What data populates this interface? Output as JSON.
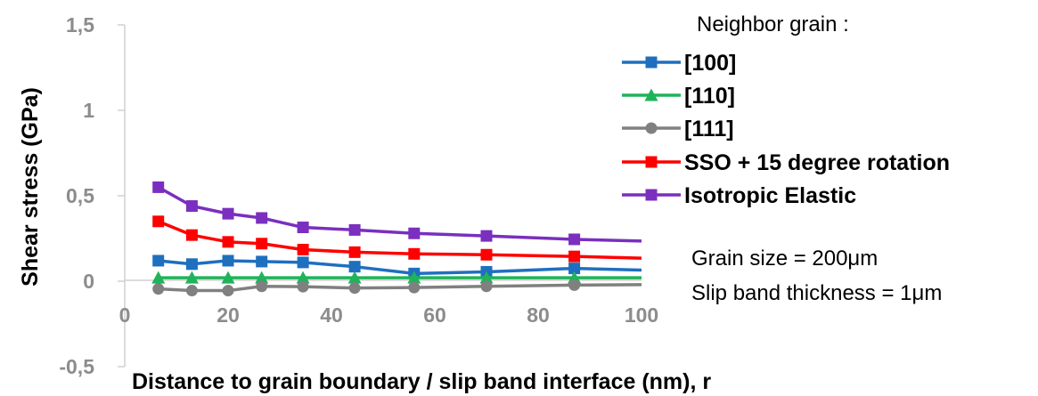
{
  "chart_data": {
    "type": "line",
    "title": "",
    "xlabel": "Distance to grain boundary / slip band interface (nm), r",
    "ylabel": "Shear stress (GPa)",
    "xlim": [
      0,
      100
    ],
    "ylim": [
      -0.5,
      1.5
    ],
    "x_ticks": [
      "0",
      "20",
      "40",
      "60",
      "80",
      "100"
    ],
    "y_ticks": [
      "-0,5",
      "0",
      "0,5",
      "1",
      "1,5"
    ],
    "grid": false,
    "legend_title": "Neighbor grain :",
    "legend_position": "top-right",
    "series": [
      {
        "name": "[100]",
        "color": "#1f6fbf",
        "marker": "square",
        "x": [
          6.5,
          13,
          20,
          26.5,
          34.5,
          44.5,
          56,
          70,
          87,
          100
        ],
        "y": [
          0.12,
          0.1,
          0.12,
          0.115,
          0.11,
          0.085,
          0.045,
          0.055,
          0.075,
          0.065
        ]
      },
      {
        "name": "[110]",
        "color": "#1fb35a",
        "marker": "triangle",
        "x": [
          6.5,
          13,
          20,
          26.5,
          34.5,
          44.5,
          56,
          70,
          87,
          100
        ],
        "y": [
          0.02,
          0.02,
          0.02,
          0.02,
          0.02,
          0.02,
          0.02,
          0.02,
          0.02,
          0.02
        ]
      },
      {
        "name": "[111]",
        "color": "#808080",
        "marker": "circle",
        "x": [
          6.5,
          13,
          20,
          26.5,
          34.5,
          44.5,
          56,
          70,
          87,
          100
        ],
        "y": [
          -0.045,
          -0.055,
          -0.055,
          -0.03,
          -0.032,
          -0.04,
          -0.037,
          -0.03,
          -0.023,
          -0.02
        ]
      },
      {
        "name": "SSO + 15 degree rotation",
        "color": "#ff0000",
        "marker": "square",
        "x": [
          6.5,
          13,
          20,
          26.5,
          34.5,
          44.5,
          56,
          70,
          87,
          100
        ],
        "y": [
          0.35,
          0.27,
          0.23,
          0.22,
          0.185,
          0.17,
          0.16,
          0.155,
          0.145,
          0.135
        ]
      },
      {
        "name": "Isotropic Elastic",
        "color": "#7a2fbf",
        "marker": "square",
        "x": [
          6.5,
          13,
          20,
          26.5,
          34.5,
          44.5,
          56,
          70,
          87,
          100
        ],
        "y": [
          0.55,
          0.44,
          0.395,
          0.37,
          0.315,
          0.3,
          0.28,
          0.265,
          0.245,
          0.235
        ]
      }
    ],
    "annotations": [
      "Grain size = 200μm",
      "Slip band thickness = 1μm"
    ]
  }
}
